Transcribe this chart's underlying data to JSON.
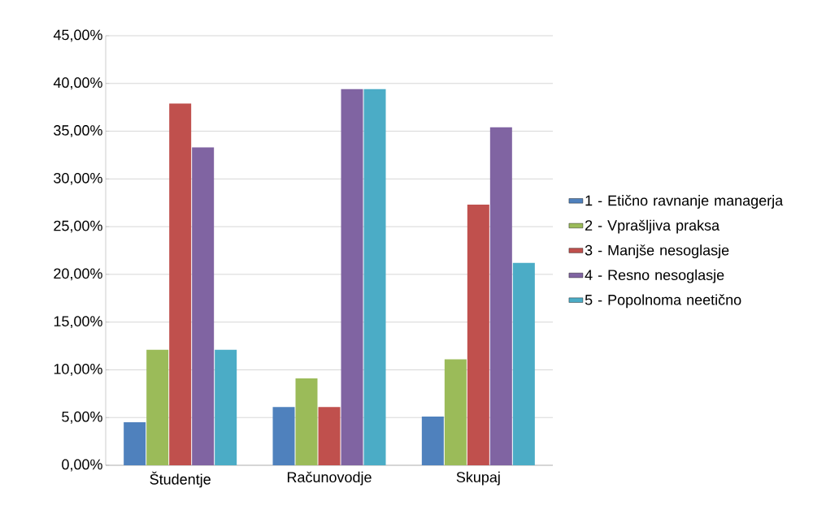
{
  "chart_data": {
    "type": "bar",
    "categories": [
      "Študentje",
      "Računovodje",
      "Skupaj"
    ],
    "series": [
      {
        "name": "1 - Etično ravnanje managerja",
        "color": "#4f81bd",
        "values": [
          4.5,
          6.1,
          5.1
        ]
      },
      {
        "name": "2 - Vprašljiva praksa",
        "color": "#9bbb59",
        "values": [
          12.1,
          9.1,
          11.1
        ]
      },
      {
        "name": "3 - Manjše nesoglasje",
        "color": "#c0504d",
        "values": [
          37.9,
          6.1,
          27.3
        ]
      },
      {
        "name": "4 - Resno nesoglasje",
        "color": "#8064a2",
        "values": [
          33.3,
          39.4,
          35.4
        ]
      },
      {
        "name": "5 - Popolnoma neetično",
        "color": "#4bacc6",
        "values": [
          12.1,
          39.4,
          21.2
        ]
      }
    ],
    "ylim": [
      0,
      45
    ],
    "yticks": [
      {
        "value": 0,
        "label": "0,00%"
      },
      {
        "value": 5,
        "label": "5,00%"
      },
      {
        "value": 10,
        "label": "10,00%"
      },
      {
        "value": 15,
        "label": "15,00%"
      },
      {
        "value": 20,
        "label": "20,00%"
      },
      {
        "value": 25,
        "label": "25,00%"
      },
      {
        "value": 30,
        "label": "30,00%"
      },
      {
        "value": 35,
        "label": "35,00%"
      },
      {
        "value": 40,
        "label": "40,00%"
      },
      {
        "value": 45,
        "label": "45,00%"
      }
    ],
    "grid": "y",
    "legend": "right"
  }
}
